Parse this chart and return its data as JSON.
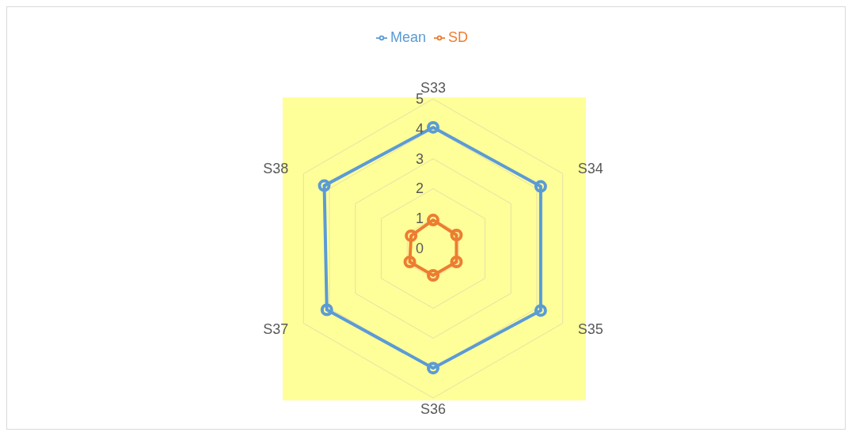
{
  "chart_data": {
    "type": "radar",
    "categories": [
      "S33",
      "S34",
      "S35",
      "S36",
      "S37",
      "S38"
    ],
    "series": [
      {
        "name": "Mean",
        "color": "#5b9bd5",
        "values": [
          4.05,
          4.15,
          4.15,
          4.0,
          4.1,
          4.2
        ]
      },
      {
        "name": "SD",
        "color": "#ed7d31",
        "values": [
          0.95,
          0.9,
          0.9,
          0.9,
          0.9,
          0.85
        ]
      }
    ],
    "ylim": [
      0,
      5
    ],
    "yticks": [
      0,
      1,
      2,
      3,
      4,
      5
    ],
    "grid": true,
    "legend": "top",
    "marker": "circle",
    "line_style": "solid"
  }
}
